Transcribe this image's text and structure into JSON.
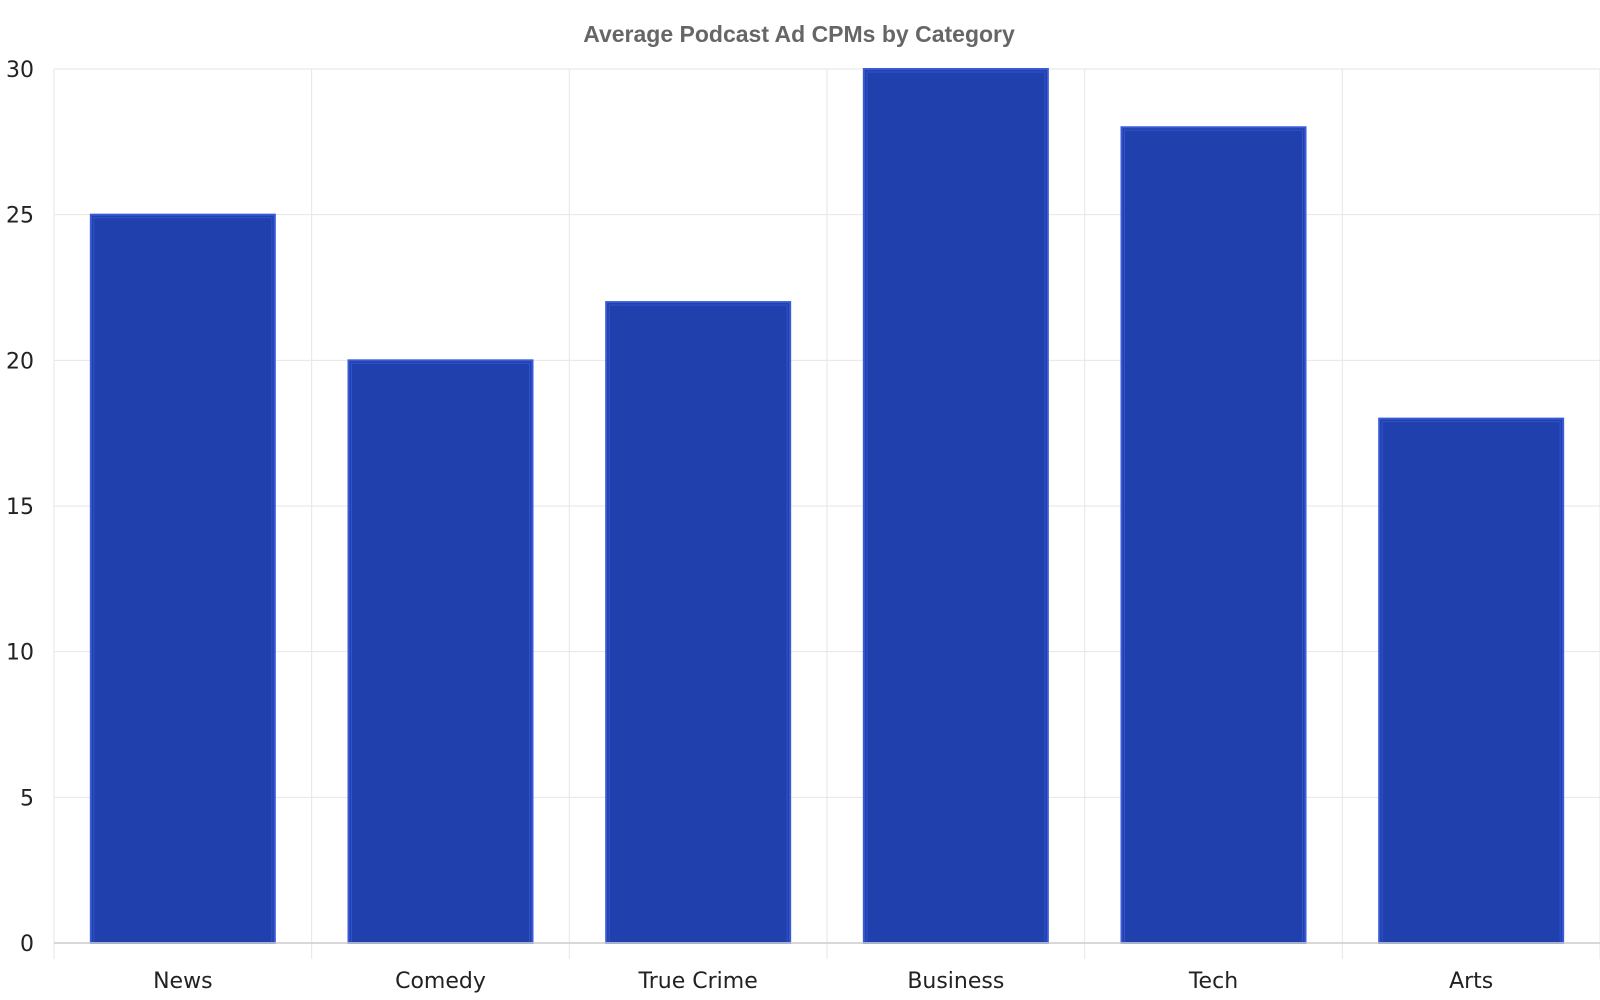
{
  "chart_data": {
    "type": "bar",
    "title": "Average Podcast Ad CPMs by Category",
    "categories": [
      "News",
      "Comedy",
      "True Crime",
      "Business",
      "Tech",
      "Arts"
    ],
    "values": [
      25,
      20,
      22,
      30,
      28,
      18
    ],
    "xlabel": "",
    "ylabel": "",
    "ylim": [
      0,
      30
    ],
    "yticks": [
      0,
      5,
      10,
      15,
      20,
      25,
      30
    ],
    "grid": true,
    "legend": "none"
  },
  "colors": {
    "bar_fill": "#1f40ad",
    "bar_stroke": "#3a5bd6",
    "grid": "#e6e6e6",
    "axis": "#cccccc",
    "title_text": "#666666",
    "tick_text": "#222222"
  }
}
